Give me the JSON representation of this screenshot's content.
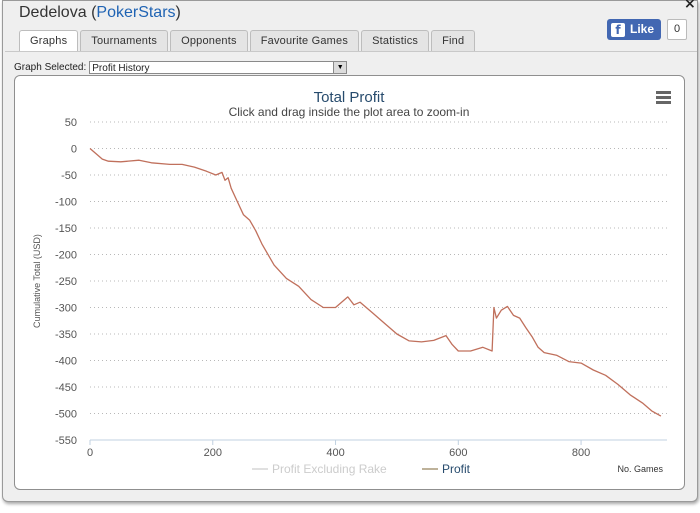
{
  "window": {
    "player_name": "Dedelova",
    "site_name": "PokerStars",
    "close_label": "×"
  },
  "facebook": {
    "like_label": "Like",
    "like_count": "0",
    "icon": "facebook-icon"
  },
  "tabs": [
    {
      "label": "Graphs",
      "active": true
    },
    {
      "label": "Tournaments",
      "active": false
    },
    {
      "label": "Opponents",
      "active": false
    },
    {
      "label": "Favourite Games",
      "active": false
    },
    {
      "label": "Statistics",
      "active": false
    },
    {
      "label": "Find",
      "active": false
    }
  ],
  "graph_selector": {
    "label": "Graph Selected:",
    "value": "Profit History"
  },
  "chart_data": {
    "type": "line",
    "title": "Total Profit",
    "subtitle": "Click and drag inside the plot area to zoom-in",
    "xlabel": "No. Games",
    "ylabel": "Cumulative Total (USD)",
    "xlim": [
      0,
      940
    ],
    "ylim": [
      -550,
      50
    ],
    "xticks": [
      0,
      200,
      400,
      600,
      800
    ],
    "yticks": [
      50,
      0,
      -50,
      -100,
      -150,
      -200,
      -250,
      -300,
      -350,
      -400,
      -450,
      -500,
      -550
    ],
    "grid": true,
    "legend_position": "bottom",
    "series": [
      {
        "name": "Profit Excluding Rake",
        "color": "#d0d0d0",
        "visible": false,
        "x": [],
        "y": []
      },
      {
        "name": "Profit",
        "color": "#c0705c",
        "visible": true,
        "x": [
          0,
          10,
          20,
          30,
          50,
          80,
          100,
          130,
          150,
          170,
          190,
          205,
          215,
          220,
          225,
          230,
          240,
          250,
          260,
          270,
          280,
          300,
          320,
          340,
          360,
          380,
          400,
          420,
          430,
          440,
          460,
          480,
          500,
          520,
          540,
          560,
          580,
          590,
          600,
          620,
          640,
          655,
          658,
          662,
          670,
          680,
          690,
          700,
          710,
          720,
          730,
          740,
          760,
          780,
          800,
          820,
          840,
          860,
          880,
          900,
          915,
          930
        ],
        "y": [
          0,
          -10,
          -20,
          -24,
          -25,
          -22,
          -27,
          -30,
          -30,
          -35,
          -43,
          -50,
          -45,
          -60,
          -55,
          -75,
          -100,
          -125,
          -135,
          -155,
          -180,
          -220,
          -245,
          -260,
          -285,
          -300,
          -300,
          -280,
          -295,
          -290,
          -310,
          -330,
          -350,
          -363,
          -365,
          -362,
          -353,
          -370,
          -382,
          -382,
          -375,
          -382,
          -300,
          -320,
          -305,
          -298,
          -315,
          -320,
          -338,
          -355,
          -375,
          -385,
          -390,
          -402,
          -405,
          -418,
          -428,
          -445,
          -465,
          -480,
          -495,
          -505
        ]
      }
    ]
  }
}
